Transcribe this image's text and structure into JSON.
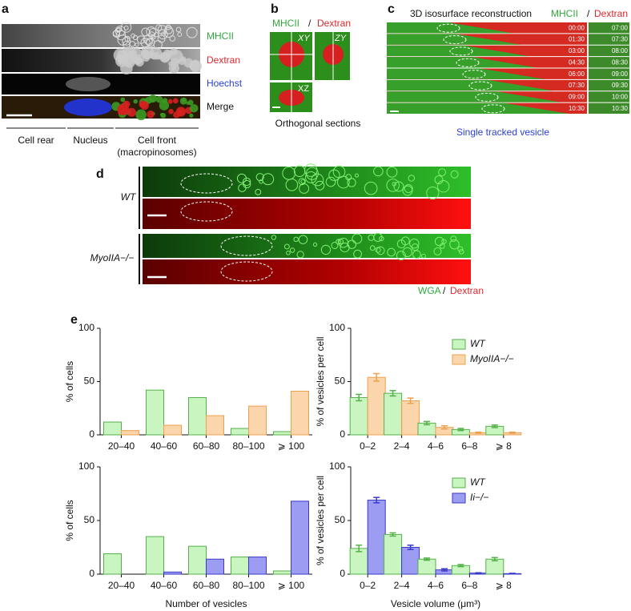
{
  "panel_a": {
    "label": "a",
    "channels": [
      "MHCII",
      "Dextran",
      "Hoechst",
      "Merge"
    ],
    "regions": [
      "Cell rear",
      "Nucleus",
      "Cell front",
      "(macropinosomes)"
    ]
  },
  "panel_b": {
    "label": "b",
    "stain_1": "MHCII",
    "separator": "/",
    "stain_2": "Dextran",
    "views": [
      "XY",
      "ZY",
      "XZ"
    ],
    "caption": "Orthogonal sections"
  },
  "panel_c": {
    "label": "c",
    "title": "3D isosurface reconstruction",
    "stain_1": "MHCII",
    "separator": "/",
    "stain_2": "Dextran",
    "times_left": [
      "00:00",
      "01:30",
      "03:00",
      "04:30",
      "06:00",
      "07:30",
      "09:00",
      "10:30"
    ],
    "times_right": [
      "07:00",
      "07:30",
      "08:00",
      "08:30",
      "09:00",
      "09:30",
      "10:00",
      "10:30"
    ],
    "caption": "Single tracked vesicle"
  },
  "panel_d": {
    "label": "d",
    "conditions": [
      "WT",
      "MyoIIA−/−"
    ],
    "stain_1": "WGA",
    "separator": "/",
    "stain_2": "Dextran"
  },
  "panel_e": {
    "label": "e"
  },
  "chart_data": [
    {
      "type": "bar",
      "ylabel": "% of cells",
      "categories": [
        "20–40",
        "40–60",
        "60–80",
        "80–100",
        "⩾ 100"
      ],
      "ylim": [
        0,
        100
      ],
      "yticks": [
        0,
        50,
        100
      ],
      "series": [
        {
          "color": "#c9f5c1",
          "edgecolor": "#55b04a",
          "values": [
            12,
            42,
            35,
            6,
            3
          ]
        },
        {
          "color": "#fbd6ad",
          "edgecolor": "#eea04e",
          "values": [
            4,
            9,
            18,
            27,
            41
          ]
        }
      ]
    },
    {
      "type": "bar",
      "ylabel": "% of vesicles per cell",
      "categories": [
        "0–2",
        "2–4",
        "4–6",
        "6–8",
        "⩾ 8"
      ],
      "ylim": [
        0,
        100
      ],
      "yticks": [
        0,
        50,
        100
      ],
      "legend": "upper right",
      "series": [
        {
          "name": "WT",
          "color": "#c9f5c1",
          "edgecolor": "#55b04a",
          "values": [
            35,
            39,
            11,
            5,
            8
          ],
          "errors": [
            3,
            2.5,
            1.5,
            1,
            1.2
          ]
        },
        {
          "name": "MyoIIA−/−",
          "color": "#fbd6ad",
          "edgecolor": "#eea04e",
          "values": [
            54,
            32,
            7,
            2,
            2
          ],
          "errors": [
            3.5,
            2.5,
            1.5,
            0.5,
            0.5
          ]
        }
      ]
    },
    {
      "type": "bar",
      "ylabel": "% of cells",
      "xlabel": "Number of vesicles",
      "categories": [
        "20–40",
        "40–60",
        "60–80",
        "80–100",
        "⩾ 100"
      ],
      "ylim": [
        0,
        100
      ],
      "yticks": [
        0,
        50,
        100
      ],
      "series": [
        {
          "color": "#c9f5c1",
          "edgecolor": "#55b04a",
          "values": [
            19,
            35,
            26,
            16,
            3
          ]
        },
        {
          "color": "#9c9cf2",
          "edgecolor": "#3a3ac8",
          "values": [
            0,
            2,
            14,
            16,
            68
          ]
        }
      ]
    },
    {
      "type": "bar",
      "ylabel": "% of vesicles per cell",
      "xlabel": "Vesicle volume (μm³)",
      "categories": [
        "0–2",
        "2–4",
        "4–6",
        "6–8",
        "⩾ 8"
      ],
      "ylim": [
        0,
        100
      ],
      "yticks": [
        0,
        50,
        100
      ],
      "legend": "upper right",
      "series": [
        {
          "name": "WT",
          "color": "#c9f5c1",
          "edgecolor": "#55b04a",
          "values": [
            24,
            37,
            14,
            8,
            14
          ],
          "errors": [
            3,
            1.5,
            1,
            1,
            1.5
          ]
        },
        {
          "name": "Ii−/−",
          "color": "#9c9cf2",
          "edgecolor": "#3a3ac8",
          "values": [
            69,
            25,
            4,
            1,
            0.5
          ],
          "errors": [
            2.5,
            2,
            1,
            0.3,
            0.3
          ]
        }
      ]
    }
  ]
}
